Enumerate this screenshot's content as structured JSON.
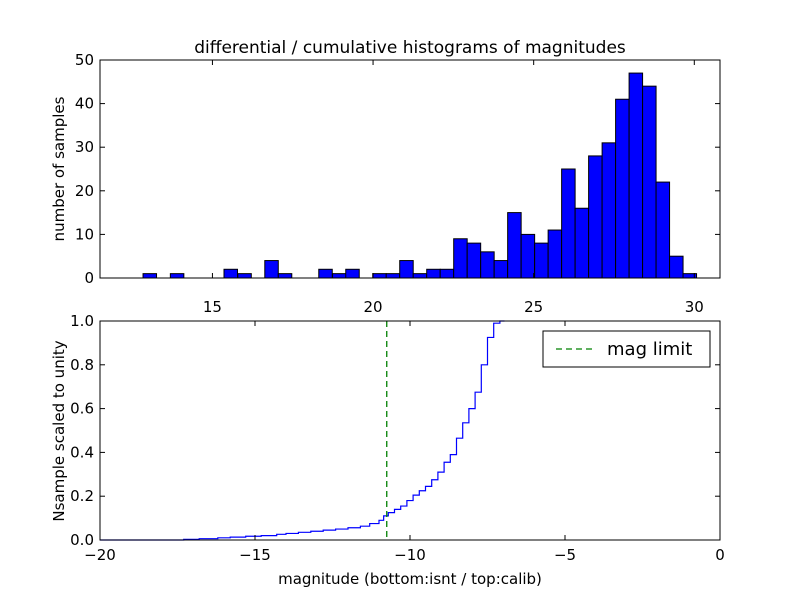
{
  "figure": {
    "title": "differential / cumulative histograms of magnitudes"
  },
  "chart_data": [
    {
      "type": "bar",
      "ylabel": "number of samples",
      "xlim": [
        11.5,
        30.8
      ],
      "ylim": [
        0,
        50
      ],
      "xticks": [
        "15",
        "20",
        "25",
        "30"
      ],
      "yticks": [
        "0",
        "10",
        "20",
        "30",
        "40",
        "50"
      ],
      "bin_width": 0.42,
      "bar_color": "#0000ff",
      "bars": [
        {
          "x": 13.05,
          "y": 1
        },
        {
          "x": 13.9,
          "y": 1
        },
        {
          "x": 15.57,
          "y": 2
        },
        {
          "x": 16.0,
          "y": 1
        },
        {
          "x": 16.84,
          "y": 4
        },
        {
          "x": 17.26,
          "y": 1
        },
        {
          "x": 18.52,
          "y": 2
        },
        {
          "x": 18.95,
          "y": 1
        },
        {
          "x": 19.36,
          "y": 2
        },
        {
          "x": 20.2,
          "y": 1
        },
        {
          "x": 20.62,
          "y": 1
        },
        {
          "x": 21.04,
          "y": 4
        },
        {
          "x": 21.46,
          "y": 1
        },
        {
          "x": 21.88,
          "y": 2
        },
        {
          "x": 22.3,
          "y": 2
        },
        {
          "x": 22.72,
          "y": 9
        },
        {
          "x": 23.14,
          "y": 8
        },
        {
          "x": 23.56,
          "y": 6
        },
        {
          "x": 23.98,
          "y": 4
        },
        {
          "x": 24.4,
          "y": 15
        },
        {
          "x": 24.82,
          "y": 10
        },
        {
          "x": 25.24,
          "y": 8
        },
        {
          "x": 25.66,
          "y": 11
        },
        {
          "x": 26.08,
          "y": 25
        },
        {
          "x": 26.5,
          "y": 16
        },
        {
          "x": 26.92,
          "y": 28
        },
        {
          "x": 27.34,
          "y": 31
        },
        {
          "x": 27.76,
          "y": 41
        },
        {
          "x": 28.18,
          "y": 47
        },
        {
          "x": 28.6,
          "y": 44
        },
        {
          "x": 29.02,
          "y": 22
        },
        {
          "x": 29.44,
          "y": 5
        },
        {
          "x": 29.86,
          "y": 1
        }
      ]
    },
    {
      "type": "line",
      "xlabel": "magnitude (bottom:isnt / top:calib)",
      "ylabel": "Nsample scaled to unity",
      "xlim": [
        -20,
        0
      ],
      "ylim": [
        0,
        1.0
      ],
      "xticks": [
        "−20",
        "−15",
        "−10",
        "−5",
        "0"
      ],
      "yticks": [
        "0.0",
        "0.2",
        "0.4",
        "0.6",
        "0.8",
        "1.0"
      ],
      "step_color": "#0000ff",
      "step": {
        "x": [
          -20.0,
          -17.3,
          -16.8,
          -16.2,
          -15.8,
          -15.3,
          -14.8,
          -14.3,
          -14.0,
          -13.6,
          -13.2,
          -12.8,
          -12.4,
          -12.0,
          -11.6,
          -11.3,
          -11.0,
          -10.85,
          -10.7,
          -10.5,
          -10.3,
          -10.1,
          -9.9,
          -9.7,
          -9.5,
          -9.3,
          -9.1,
          -8.9,
          -8.7,
          -8.5,
          -8.3,
          -8.1,
          -7.9,
          -7.7,
          -7.5,
          -7.3,
          -7.1,
          -6.95
        ],
        "y": [
          0.0,
          0.003,
          0.006,
          0.01,
          0.013,
          0.017,
          0.02,
          0.026,
          0.03,
          0.035,
          0.04,
          0.045,
          0.05,
          0.056,
          0.063,
          0.075,
          0.09,
          0.11,
          0.125,
          0.14,
          0.155,
          0.18,
          0.205,
          0.225,
          0.245,
          0.275,
          0.31,
          0.355,
          0.39,
          0.465,
          0.535,
          0.6,
          0.675,
          0.8,
          0.925,
          0.99,
          1.0,
          1.0
        ]
      },
      "vline": {
        "x": -10.75,
        "name": "mag limit",
        "color": "#008000",
        "style": "dashed"
      },
      "legend": {
        "position": "top-right"
      }
    }
  ]
}
